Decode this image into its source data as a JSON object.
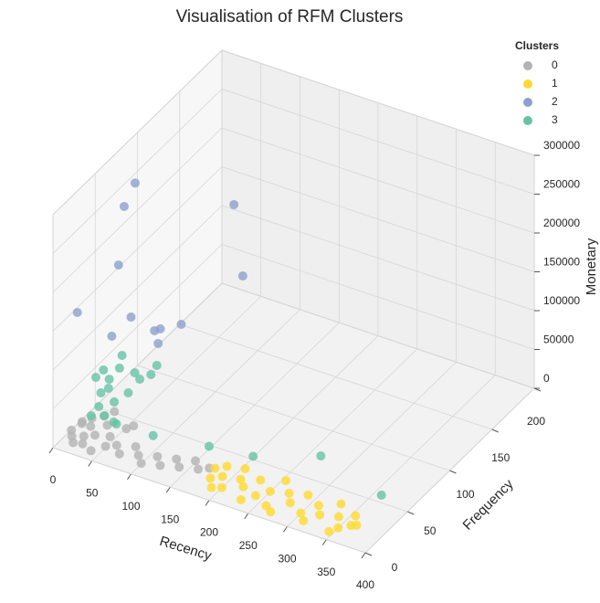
{
  "chart_data": {
    "type": "scatter3d",
    "title": "Visualisation of RFM Clusters",
    "xlabel": "Recency",
    "ylabel": "Frequency",
    "zlabel": "Monetary",
    "xlim": [
      0,
      400
    ],
    "ylim": [
      0,
      200
    ],
    "zlim": [
      0,
      300000
    ],
    "xticks": [
      0,
      50,
      100,
      150,
      200,
      250,
      300,
      350,
      400
    ],
    "yticks": [
      0,
      50,
      100,
      150,
      200
    ],
    "zticks": [
      0,
      50000,
      100000,
      150000,
      200000,
      250000,
      300000
    ],
    "grid": true,
    "legend": "upper right",
    "legend_title": "Clusters",
    "series": [
      {
        "name": "0",
        "color": "#b3b3b3",
        "x": [
          2,
          5,
          8,
          10,
          12,
          15,
          18,
          20,
          22,
          25,
          30,
          35,
          40,
          45,
          50,
          55,
          60,
          70,
          80,
          90,
          100,
          110,
          120,
          130,
          140,
          150,
          160,
          170,
          30,
          60
        ],
        "y": [
          20,
          30,
          15,
          25,
          35,
          10,
          28,
          18,
          40,
          12,
          22,
          32,
          8,
          26,
          16,
          36,
          20,
          14,
          24,
          18,
          12,
          22,
          16,
          26,
          20,
          30,
          24,
          28,
          45,
          40
        ],
        "z": [
          2000,
          3500,
          1500,
          8000,
          5000,
          1000,
          4000,
          2500,
          6000,
          800,
          3000,
          7000,
          1200,
          2000,
          1800,
          5000,
          2200,
          900,
          3000,
          1500,
          1000,
          2500,
          800,
          1800,
          1200,
          2000,
          1000,
          1500,
          9000,
          6000
        ]
      },
      {
        "name": "1",
        "color": "#ffd92f",
        "x": [
          175,
          180,
          185,
          190,
          200,
          205,
          210,
          220,
          230,
          240,
          250,
          255,
          260,
          270,
          280,
          290,
          300,
          310,
          320,
          330,
          340,
          350,
          355,
          360,
          365,
          190,
          230,
          270,
          310,
          345
        ],
        "y": [
          30,
          20,
          35,
          25,
          15,
          38,
          28,
          22,
          33,
          18,
          26,
          40,
          12,
          30,
          22,
          34,
          16,
          28,
          20,
          36,
          24,
          14,
          30,
          20,
          22,
          12,
          10,
          8,
          10,
          8
        ],
        "z": [
          1000,
          500,
          1500,
          800,
          400,
          2000,
          600,
          900,
          1200,
          300,
          700,
          1500,
          400,
          900,
          600,
          1100,
          300,
          800,
          500,
          1000,
          600,
          300,
          700,
          500,
          400,
          300,
          200,
          300,
          200,
          200
        ]
      },
      {
        "name": "2",
        "color": "#8da0cb",
        "x": [
          10,
          10,
          5,
          2,
          5,
          8,
          10,
          12,
          15,
          20,
          10,
          30
        ],
        "y": [
          88,
          75,
          73,
          27,
          65,
          85,
          111,
          116,
          138,
          106,
          205,
          197
        ],
        "z": [
          251000,
          234600,
          159600,
          146200,
          76400,
          80900,
          36500,
          34200,
          17800,
          28700,
          99300,
          22700
        ]
      },
      {
        "name": "3",
        "color": "#66c2a5",
        "x": [
          3,
          3,
          3,
          3,
          15,
          40,
          40,
          30,
          3,
          3,
          20,
          10,
          10,
          25,
          40,
          25,
          148,
          199,
          263,
          359,
          85,
          38,
          5
        ],
        "y": [
          48,
          57,
          76,
          79,
          83,
          79,
          86,
          75,
          54,
          63,
          54,
          36,
          45,
          38,
          35,
          66,
          48,
          53,
          74,
          57,
          40,
          40,
          62
        ],
        "z": [
          40800,
          40700,
          23000,
          36200,
          13600,
          24000,
          28400,
          18900,
          14500,
          10800,
          8500,
          6500,
          8700,
          9400,
          9400,
          9200,
          1000,
          0,
          0,
          0,
          2000,
          1000,
          24200
        ]
      }
    ]
  }
}
